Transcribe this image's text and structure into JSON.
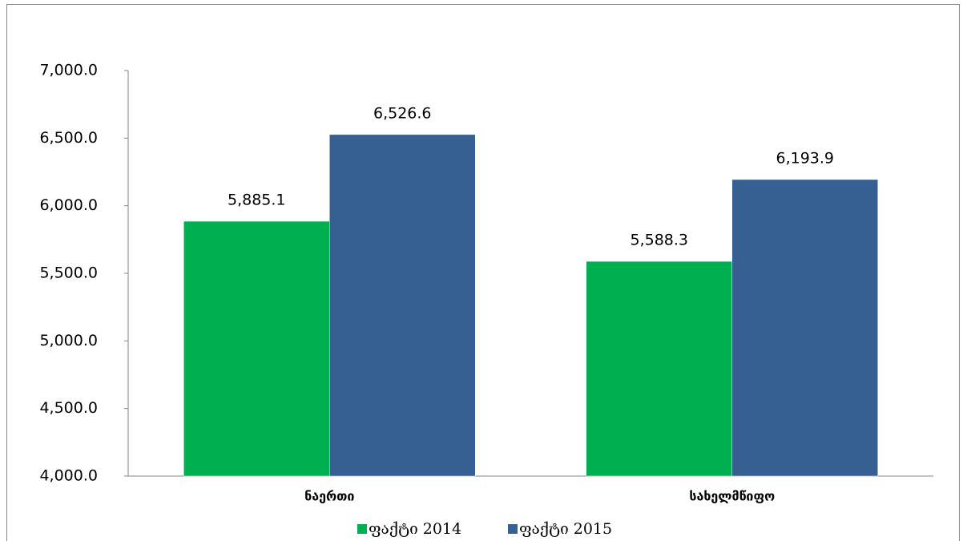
{
  "chart_data": {
    "type": "bar",
    "categories": [
      "ნაერთი",
      "სახელმწიფო"
    ],
    "series": [
      {
        "name": "ფაქტი 2014",
        "color": "#00b050",
        "values": [
          5885.1,
          5588.3
        ],
        "value_labels": [
          "5,885.1",
          "5,588.3"
        ]
      },
      {
        "name": "ფაქტი 2015",
        "color": "#376092",
        "values": [
          6526.6,
          6193.9
        ],
        "value_labels": [
          "6,526.6",
          "6,193.9"
        ]
      }
    ],
    "ylim": [
      4000,
      7000
    ],
    "yticks": [
      {
        "value": 4000,
        "label": "4,000.0"
      },
      {
        "value": 4500,
        "label": "4,500.0"
      },
      {
        "value": 5000,
        "label": "5,000.0"
      },
      {
        "value": 5500,
        "label": "5,500.0"
      },
      {
        "value": 6000,
        "label": "6,000.0"
      },
      {
        "value": 6500,
        "label": "6,500.0"
      },
      {
        "value": 7000,
        "label": "7,000.0"
      }
    ],
    "grid": false,
    "legend": "bottom"
  }
}
